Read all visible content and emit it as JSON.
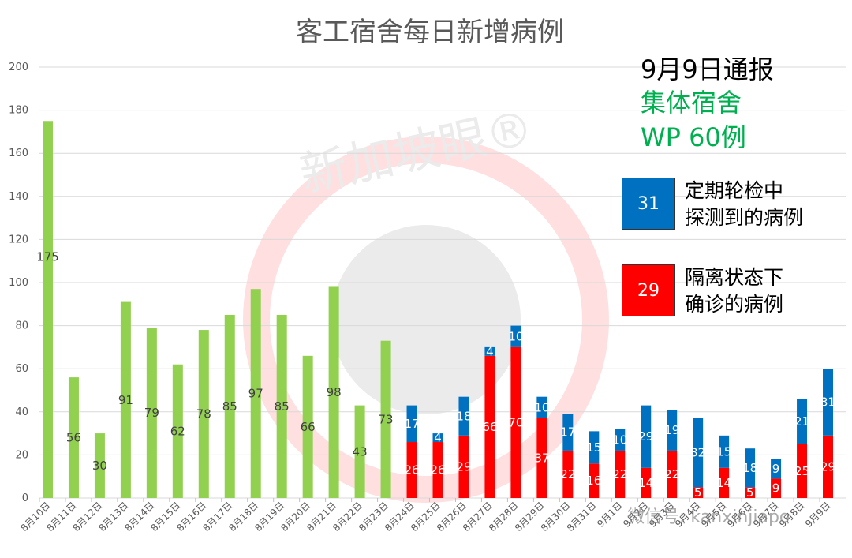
{
  "chart_data": {
    "type": "bar",
    "title": "客工宿舍每日新增病例",
    "ylim": [
      0,
      200
    ],
    "yticks": [
      0,
      20,
      40,
      60,
      80,
      100,
      120,
      140,
      160,
      180,
      200
    ],
    "grid": true,
    "categories": [
      "8月10日",
      "8月11日",
      "8月12日",
      "8月13日",
      "8月14日",
      "8月15日",
      "8月16日",
      "8月17日",
      "8月18日",
      "8月19日",
      "8月20日",
      "8月21日",
      "8月22日",
      "8月23日",
      "8月24日",
      "8月25日",
      "8月26日",
      "8月27日",
      "8月28日",
      "8月29日",
      "8月30日",
      "8月31日",
      "9月1日",
      "9月2日",
      "9月3日",
      "9月4日",
      "9月5日",
      "9月6日",
      "9月7日",
      "9月8日",
      "9月9日"
    ],
    "series": [
      {
        "values": [
          175,
          56,
          30,
          91,
          79,
          62,
          78,
          85,
          97,
          85,
          66,
          98,
          43,
          73,
          null,
          null,
          null,
          null,
          null,
          null,
          null,
          null,
          null,
          null,
          null,
          null,
          null,
          null,
          null,
          null,
          null
        ],
        "color": "#92d050"
      },
      {
        "name": "隔离状态下确诊的病例",
        "values": [
          null,
          null,
          null,
          null,
          null,
          null,
          null,
          null,
          null,
          null,
          null,
          null,
          null,
          null,
          26,
          26,
          29,
          66,
          70,
          37,
          22,
          16,
          22,
          14,
          22,
          5,
          14,
          5,
          9,
          25,
          29
        ],
        "color": "#ff0000"
      },
      {
        "name": "定期轮检中探测到的病例",
        "values": [
          null,
          null,
          null,
          null,
          null,
          null,
          null,
          null,
          null,
          null,
          null,
          null,
          null,
          null,
          17,
          4,
          18,
          4,
          10,
          10,
          17,
          15,
          10,
          29,
          19,
          32,
          15,
          18,
          9,
          21,
          31
        ],
        "color": "#0070c0"
      }
    ]
  },
  "report": {
    "date_line": "9月9日通报",
    "category_line": "集体宿舍",
    "total_line": "WP 60例"
  },
  "legend": {
    "blue": {
      "count": "31",
      "line1": "定期轮检中",
      "line2": "探测到的病例",
      "color": "#0070c0"
    },
    "red": {
      "count": "29",
      "line1": "隔离状态下",
      "line2": "确诊的病例",
      "color": "#ff0000"
    }
  },
  "watermark": {
    "brand": "新加坡眼®",
    "wechat": "微信号: kanxinjiapo"
  }
}
